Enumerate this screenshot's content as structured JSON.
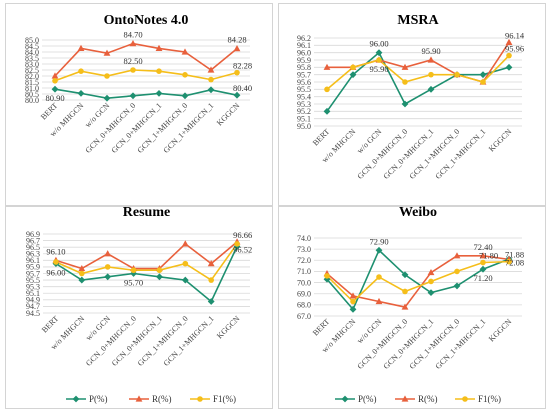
{
  "legend": [
    {
      "label": "P(%)",
      "color": "#1e9070"
    },
    {
      "label": "R(%)",
      "color": "#e8603c"
    },
    {
      "label": "F1(%)",
      "color": "#f5be1a"
    }
  ],
  "chart_data": [
    {
      "type": "line",
      "title": "OntoNotes 4.0",
      "categories": [
        "BERT",
        "w/o MHGCN",
        "w/o GCN",
        "GCN_0+MHGCN_0",
        "GCN_0+MHGCN_1",
        "GCN_1+MHGCN_0",
        "GCN_1+MHGCN_1",
        "KGGCN"
      ],
      "ylim": [
        80.0,
        85.0
      ],
      "yticks": [
        "80.0",
        "80.5",
        "81.0",
        "81.5",
        "82.0",
        "82.5",
        "83.0",
        "83.5",
        "84.0",
        "84.5",
        "85.0"
      ],
      "grid": true,
      "series": [
        {
          "name": "P(%)",
          "values": [
            80.9,
            80.55,
            80.15,
            80.35,
            80.55,
            80.35,
            80.85,
            80.4
          ]
        },
        {
          "name": "R(%)",
          "values": [
            82.0,
            84.3,
            83.9,
            84.7,
            84.3,
            84.0,
            82.5,
            84.28
          ]
        },
        {
          "name": "F1(%)",
          "values": [
            81.6,
            82.4,
            82.0,
            82.5,
            82.4,
            82.1,
            81.7,
            82.28
          ]
        }
      ],
      "annotations": [
        {
          "text": "80.90",
          "series": 0,
          "index": 0,
          "pos": "below"
        },
        {
          "text": "84.70",
          "series": 1,
          "index": 3,
          "pos": "above"
        },
        {
          "text": "82.50",
          "series": 2,
          "index": 3,
          "pos": "above"
        },
        {
          "text": "84.28",
          "series": 1,
          "index": 7,
          "pos": "above"
        },
        {
          "text": "82.28",
          "series": 2,
          "index": 7,
          "pos": "right"
        },
        {
          "text": "80.40",
          "series": 0,
          "index": 7,
          "pos": "right"
        }
      ]
    },
    {
      "type": "line",
      "title": "MSRA",
      "categories": [
        "BERT",
        "w/o MHGCN",
        "w/o GCN",
        "GCN_0+MHGCN_0",
        "GCN_0+MHGCN_1",
        "GCN_1+MHGCN_0",
        "GCN_1+MHGCN_1",
        "KGGCN"
      ],
      "ylim": [
        95.0,
        96.2
      ],
      "yticks": [
        "95.0",
        "95.1",
        "95.2",
        "95.3",
        "95.4",
        "95.5",
        "95.6",
        "95.7",
        "95.8",
        "95.9",
        "96.0",
        "96.1",
        "96.2"
      ],
      "grid": true,
      "series": [
        {
          "name": "P(%)",
          "values": [
            95.2,
            95.7,
            96.0,
            95.3,
            95.5,
            95.7,
            95.7,
            95.8
          ]
        },
        {
          "name": "R(%)",
          "values": [
            95.8,
            95.8,
            95.9,
            95.8,
            95.9,
            95.7,
            95.6,
            96.14
          ]
        },
        {
          "name": "F1(%)",
          "values": [
            95.5,
            95.8,
            95.9,
            95.6,
            95.7,
            95.7,
            95.6,
            95.96
          ]
        }
      ],
      "annotations": [
        {
          "text": "96.00",
          "series": 0,
          "index": 2,
          "pos": "above"
        },
        {
          "text": "95.90",
          "series": 2,
          "index": 2,
          "pos": "below"
        },
        {
          "text": "95.90",
          "series": 1,
          "index": 4,
          "pos": "above"
        },
        {
          "text": "96.14",
          "series": 1,
          "index": 7,
          "pos": "right"
        },
        {
          "text": "95.96",
          "series": 2,
          "index": 7,
          "pos": "right"
        }
      ]
    },
    {
      "type": "line",
      "title": "Resume",
      "categories": [
        "BERT",
        "w/o MHGCN",
        "w/o GCN",
        "GCN_0+MHGCN_0",
        "GCN_0+MHGCN_1",
        "GCN_1+MHGCN_0",
        "GCN_1+MHGCN_1",
        "KGGCN"
      ],
      "ylim": [
        94.5,
        96.9
      ],
      "yticks": [
        "94.5",
        "94.7",
        "94.9",
        "95.1",
        "95.3",
        "95.5",
        "95.7",
        "95.9",
        "96.1",
        "96.3",
        "96.5",
        "96.7",
        "96.9"
      ],
      "grid": true,
      "series": [
        {
          "name": "P(%)",
          "values": [
            96.0,
            95.5,
            95.6,
            95.7,
            95.6,
            95.5,
            94.85,
            96.52
          ]
        },
        {
          "name": "R(%)",
          "values": [
            96.1,
            95.85,
            96.3,
            95.85,
            95.85,
            96.6,
            96.0,
            96.66
          ]
        },
        {
          "name": "F1(%)",
          "values": [
            96.05,
            95.7,
            95.9,
            95.8,
            95.8,
            96.0,
            95.5,
            96.6
          ]
        }
      ],
      "annotations": [
        {
          "text": "96.10",
          "series": 1,
          "index": 0,
          "pos": "above"
        },
        {
          "text": "96.00",
          "series": 0,
          "index": 0,
          "pos": "below"
        },
        {
          "text": "95.70",
          "series": 0,
          "index": 3,
          "pos": "below"
        },
        {
          "text": "96.66",
          "series": 1,
          "index": 7,
          "pos": "right"
        },
        {
          "text": "96.52",
          "series": 0,
          "index": 7,
          "pos": "rightlow"
        }
      ]
    },
    {
      "type": "line",
      "title": "Weibo",
      "categories": [
        "BERT",
        "w/o MHGCN",
        "w/o GCN",
        "GCN_0+MHGCN_0",
        "GCN_0+MHGCN_1",
        "GCN_1+MHGCN_0",
        "GCN_1+MHGCN_1",
        "KGGCN"
      ],
      "ylim": [
        67.0,
        74.0
      ],
      "yticks": [
        "67.0",
        "68.0",
        "69.0",
        "70.0",
        "71.0",
        "72.0",
        "73.0",
        "74.0"
      ],
      "grid": true,
      "series": [
        {
          "name": "P(%)",
          "values": [
            70.3,
            67.6,
            72.9,
            70.7,
            69.1,
            69.7,
            71.2,
            72.1
          ]
        },
        {
          "name": "R(%)",
          "values": [
            70.8,
            68.8,
            68.3,
            67.8,
            70.9,
            72.4,
            72.4,
            72.08
          ]
        },
        {
          "name": "F1(%)",
          "values": [
            70.6,
            68.3,
            70.5,
            69.2,
            70.1,
            71.0,
            71.8,
            71.88
          ]
        }
      ],
      "annotations": [
        {
          "text": "72.90",
          "series": 0,
          "index": 2,
          "pos": "above"
        },
        {
          "text": "72.40",
          "series": 1,
          "index": 6,
          "pos": "above"
        },
        {
          "text": "71.80",
          "series": 2,
          "index": 6,
          "pos": "right"
        },
        {
          "text": "71.20",
          "series": 0,
          "index": 6,
          "pos": "below"
        },
        {
          "text": "71.88",
          "series": 2,
          "index": 7,
          "pos": "right"
        },
        {
          "text": "72.08",
          "series": 1,
          "index": 7,
          "pos": "rightlow"
        }
      ]
    }
  ]
}
